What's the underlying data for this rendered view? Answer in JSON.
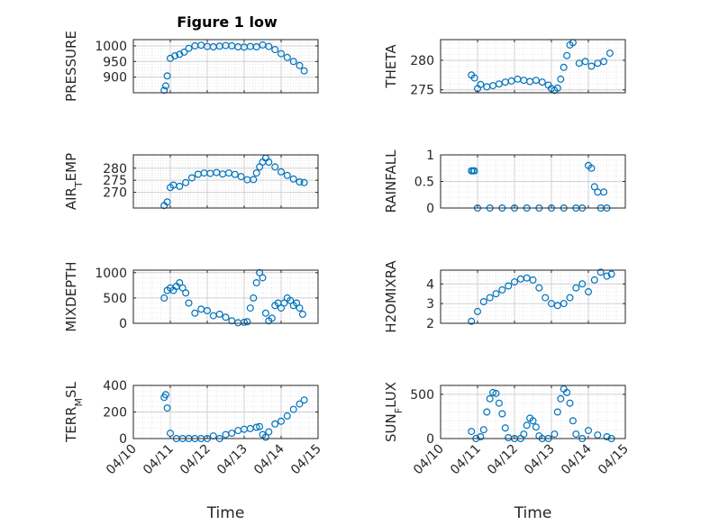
{
  "title": "Figure 1 low",
  "xlabel": "Time",
  "x_tick_labels": [
    "04/10",
    "04/11",
    "04/12",
    "04/13",
    "04/14",
    "04/15"
  ],
  "colors": {
    "marker": "#0072BD",
    "axis": "#262626",
    "grid": "#dcdcdc"
  },
  "chart_data": [
    {
      "type": "scatter",
      "name": "pressure",
      "ylabel": "PRESSURE",
      "ylabel_sub": "",
      "ylabel_post": "",
      "ylim": [
        850,
        1020
      ],
      "yticks": [
        900,
        950,
        1000
      ],
      "grid": true,
      "x": [
        "04/10 20:00",
        "04/10 21:00",
        "04/10 22:00",
        "04/11 00:00",
        "04/11 03:00",
        "04/11 06:00",
        "04/11 09:00",
        "04/11 12:00",
        "04/11 16:00",
        "04/11 20:00",
        "04/12 00:00",
        "04/12 04:00",
        "04/12 08:00",
        "04/12 12:00",
        "04/12 16:00",
        "04/12 20:00",
        "04/13 00:00",
        "04/13 04:00",
        "04/13 08:00",
        "04/13 12:00",
        "04/13 16:00",
        "04/13 20:00",
        "04/14 00:00",
        "04/14 04:00",
        "04/14 08:00",
        "04/14 12:00",
        "04/14 15:00"
      ],
      "y": [
        858,
        872,
        904,
        960,
        968,
        973,
        980,
        992,
        1000,
        1002,
        998,
        997,
        999,
        1001,
        1000,
        997,
        996,
        998,
        997,
        1003,
        998,
        988,
        975,
        963,
        950,
        937,
        920
      ]
    },
    {
      "type": "scatter",
      "name": "theta",
      "ylabel": "THETA",
      "ylabel_sub": "",
      "ylabel_post": "",
      "ylim": [
        274.5,
        283.5
      ],
      "yticks": [
        275,
        280
      ],
      "grid": true,
      "x": [
        "04/10 20:00",
        "04/10 22:00",
        "04/11 00:00",
        "04/11 02:00",
        "04/11 06:00",
        "04/11 10:00",
        "04/11 14:00",
        "04/11 18:00",
        "04/11 22:00",
        "04/12 02:00",
        "04/12 06:00",
        "04/12 10:00",
        "04/12 14:00",
        "04/12 18:00",
        "04/12 22:00",
        "04/13 00:00",
        "04/13 02:00",
        "04/13 04:00",
        "04/13 06:00",
        "04/13 08:00",
        "04/13 10:00",
        "04/13 12:00",
        "04/13 14:00",
        "04/13 18:00",
        "04/13 22:00",
        "04/14 02:00",
        "04/14 06:00",
        "04/14 10:00",
        "04/14 14:00"
      ],
      "y": [
        277.5,
        277,
        275.2,
        275.9,
        275.5,
        275.7,
        276.0,
        276.3,
        276.5,
        276.8,
        276.6,
        276.4,
        276.6,
        276.3,
        275.8,
        275.2,
        274.9,
        275.3,
        276.8,
        278.8,
        280.8,
        282.6,
        283.0,
        279.5,
        279.8,
        279.0,
        279.5,
        279.8,
        281.2
      ]
    },
    {
      "type": "scatter",
      "name": "air_temp",
      "ylabel": "AIR",
      "ylabel_sub": "T",
      "ylabel_post": "EMP",
      "ylim": [
        263.5,
        285.5
      ],
      "yticks": [
        270,
        275,
        280
      ],
      "grid": true,
      "x": [
        "04/10 20:00",
        "04/10 22:00",
        "04/11 00:00",
        "04/11 02:00",
        "04/11 06:00",
        "04/11 10:00",
        "04/11 14:00",
        "04/11 18:00",
        "04/11 22:00",
        "04/12 02:00",
        "04/12 06:00",
        "04/12 10:00",
        "04/12 14:00",
        "04/12 18:00",
        "04/12 22:00",
        "04/13 02:00",
        "04/13 06:00",
        "04/13 08:00",
        "04/13 10:00",
        "04/13 12:00",
        "04/13 14:00",
        "04/13 16:00",
        "04/13 20:00",
        "04/14 00:00",
        "04/14 04:00",
        "04/14 08:00",
        "04/14 12:00",
        "04/14 15:00"
      ],
      "y": [
        264.5,
        266,
        272,
        273,
        272.5,
        274,
        276,
        277.5,
        278,
        277.8,
        278.2,
        277.6,
        278,
        277.4,
        276.5,
        275.2,
        275.3,
        278,
        280.5,
        282.5,
        284.2,
        282.5,
        280.5,
        278.5,
        277,
        275.5,
        274.3,
        274
      ]
    },
    {
      "type": "scatter",
      "name": "rainfall",
      "ylabel": "RAINFALL",
      "ylabel_sub": "",
      "ylabel_post": "",
      "ylim": [
        0,
        1
      ],
      "yticks": [
        0,
        0.5,
        1
      ],
      "ytick_labels": [
        "0",
        "0.5",
        "1"
      ],
      "grid": true,
      "x": [
        "04/10 20:00",
        "04/10 21:00",
        "04/10 22:00",
        "04/11 00:00",
        "04/11 08:00",
        "04/11 16:00",
        "04/12 00:00",
        "04/12 08:00",
        "04/12 16:00",
        "04/13 00:00",
        "04/13 08:00",
        "04/13 16:00",
        "04/13 20:00",
        "04/14 00:00",
        "04/14 02:00",
        "04/14 04:00",
        "04/14 06:00",
        "04/14 08:00",
        "04/14 10:00",
        "04/14 12:00"
      ],
      "y": [
        0.7,
        0.7,
        0.7,
        0,
        0,
        0,
        0,
        0,
        0,
        0,
        0,
        0,
        0,
        0.8,
        0.75,
        0.4,
        0.3,
        0,
        0.3,
        0
      ]
    },
    {
      "type": "scatter",
      "name": "mixdepth",
      "ylabel": "MIXDEPTH",
      "ylabel_sub": "",
      "ylabel_post": "",
      "ylim": [
        0,
        1050
      ],
      "yticks": [
        0,
        500,
        1000
      ],
      "grid": true,
      "x": [
        "04/10 20:00",
        "04/10 22:00",
        "04/11 00:00",
        "04/11 02:00",
        "04/11 04:00",
        "04/11 06:00",
        "04/11 08:00",
        "04/11 10:00",
        "04/11 12:00",
        "04/11 16:00",
        "04/11 20:00",
        "04/12 00:00",
        "04/12 04:00",
        "04/12 08:00",
        "04/12 12:00",
        "04/12 16:00",
        "04/12 20:00",
        "04/13 00:00",
        "04/13 02:00",
        "04/13 04:00",
        "04/13 06:00",
        "04/13 08:00",
        "04/13 10:00",
        "04/13 12:00",
        "04/13 14:00",
        "04/13 16:00",
        "04/13 18:00",
        "04/13 20:00",
        "04/13 22:00",
        "04/14 00:00",
        "04/14 02:00",
        "04/14 04:00",
        "04/14 06:00",
        "04/14 08:00",
        "04/14 10:00",
        "04/14 12:00",
        "04/14 14:00"
      ],
      "y": [
        500,
        650,
        700,
        650,
        730,
        800,
        700,
        600,
        400,
        200,
        280,
        250,
        150,
        180,
        120,
        50,
        10,
        20,
        30,
        300,
        500,
        800,
        1000,
        900,
        200,
        50,
        100,
        350,
        400,
        300,
        400,
        500,
        450,
        350,
        400,
        300,
        180
      ]
    },
    {
      "type": "scatter",
      "name": "h2omixra",
      "ylabel": "H2OMIXRA",
      "ylabel_sub": "",
      "ylabel_post": "",
      "ylim": [
        2,
        4.7
      ],
      "yticks": [
        2,
        3,
        4
      ],
      "grid": true,
      "x": [
        "04/10 20:00",
        "04/11 00:00",
        "04/11 04:00",
        "04/11 08:00",
        "04/11 12:00",
        "04/11 16:00",
        "04/11 20:00",
        "04/12 00:00",
        "04/12 04:00",
        "04/12 08:00",
        "04/12 12:00",
        "04/12 16:00",
        "04/12 20:00",
        "04/13 00:00",
        "04/13 04:00",
        "04/13 08:00",
        "04/13 12:00",
        "04/13 16:00",
        "04/13 20:00",
        "04/14 00:00",
        "04/14 04:00",
        "04/14 08:00",
        "04/14 12:00",
        "04/14 15:00"
      ],
      "y": [
        2.1,
        2.6,
        3.1,
        3.3,
        3.5,
        3.7,
        3.9,
        4.1,
        4.25,
        4.3,
        4.2,
        3.8,
        3.3,
        3.0,
        2.9,
        3.0,
        3.3,
        3.8,
        4.0,
        3.6,
        4.2,
        4.6,
        4.4,
        4.5
      ]
    },
    {
      "type": "scatter",
      "name": "terr_msl",
      "ylabel": "TERR",
      "ylabel_sub": "M",
      "ylabel_post": "SL",
      "ylim": [
        0,
        400
      ],
      "yticks": [
        0,
        200,
        400
      ],
      "grid": true,
      "x": [
        "04/10 20:00",
        "04/10 21:00",
        "04/10 22:00",
        "04/11 00:00",
        "04/11 04:00",
        "04/11 08:00",
        "04/11 12:00",
        "04/11 16:00",
        "04/11 20:00",
        "04/12 00:00",
        "04/12 04:00",
        "04/12 08:00",
        "04/12 12:00",
        "04/12 16:00",
        "04/12 20:00",
        "04/13 00:00",
        "04/13 04:00",
        "04/13 08:00",
        "04/13 10:00",
        "04/13 12:00",
        "04/13 14:00",
        "04/13 16:00",
        "04/13 20:00",
        "04/14 00:00",
        "04/14 04:00",
        "04/14 08:00",
        "04/14 12:00",
        "04/14 15:00"
      ],
      "y": [
        310,
        330,
        230,
        40,
        0,
        0,
        0,
        0,
        0,
        0,
        20,
        0,
        30,
        40,
        60,
        70,
        75,
        85,
        90,
        30,
        10,
        50,
        110,
        130,
        170,
        220,
        260,
        290
      ]
    },
    {
      "type": "scatter",
      "name": "sun_flux",
      "ylabel": "SUN",
      "ylabel_sub": "F",
      "ylabel_post": "LUX",
      "ylim": [
        0,
        600
      ],
      "yticks": [
        0,
        500
      ],
      "grid": true,
      "x": [
        "04/10 20:00",
        "04/10 23:00",
        "04/11 02:00",
        "04/11 04:00",
        "04/11 06:00",
        "04/11 08:00",
        "04/11 10:00",
        "04/11 12:00",
        "04/11 14:00",
        "04/11 16:00",
        "04/11 18:00",
        "04/11 20:00",
        "04/12 00:00",
        "04/12 04:00",
        "04/12 06:00",
        "04/12 08:00",
        "04/12 10:00",
        "04/12 12:00",
        "04/12 14:00",
        "04/12 16:00",
        "04/12 18:00",
        "04/12 22:00",
        "04/13 02:00",
        "04/13 04:00",
        "04/13 06:00",
        "04/13 08:00",
        "04/13 10:00",
        "04/13 12:00",
        "04/13 14:00",
        "04/13 16:00",
        "04/13 20:00",
        "04/14 00:00",
        "04/14 06:00",
        "04/14 12:00",
        "04/14 15:00"
      ],
      "y": [
        80,
        0,
        20,
        100,
        300,
        450,
        520,
        510,
        400,
        280,
        120,
        10,
        0,
        0,
        50,
        150,
        230,
        200,
        130,
        30,
        0,
        0,
        50,
        300,
        450,
        560,
        520,
        400,
        200,
        50,
        0,
        90,
        40,
        20,
        0
      ]
    }
  ]
}
